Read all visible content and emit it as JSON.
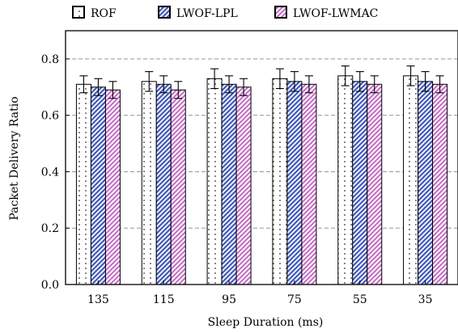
{
  "chart_data": {
    "type": "bar",
    "title": "",
    "xlabel": "Sleep Duration (ms)",
    "ylabel": "Packet Delivery Ratio",
    "ylim": [
      0,
      0.9
    ],
    "yticks": [
      0.0,
      0.2,
      0.4,
      0.6,
      0.8
    ],
    "ytick_labels": [
      "0.0",
      "0.2",
      "0.4",
      "0.6",
      "0.8"
    ],
    "categories": [
      "135",
      "115",
      "95",
      "75",
      "55",
      "35"
    ],
    "grid": "horizontal dashed",
    "legend_position": "top",
    "series": [
      {
        "name": "ROF",
        "values": [
          0.71,
          0.72,
          0.73,
          0.73,
          0.74,
          0.74
        ],
        "errors": [
          0.03,
          0.035,
          0.035,
          0.035,
          0.035,
          0.035
        ],
        "pattern": "dots",
        "color": "#333333"
      },
      {
        "name": "LWOF-LPL",
        "values": [
          0.7,
          0.71,
          0.71,
          0.72,
          0.72,
          0.72
        ],
        "errors": [
          0.03,
          0.03,
          0.03,
          0.035,
          0.035,
          0.035
        ],
        "pattern": "diagonal",
        "color": "#3f58b8"
      },
      {
        "name": "LWOF-LWMAC",
        "values": [
          0.69,
          0.69,
          0.7,
          0.71,
          0.71,
          0.71
        ],
        "errors": [
          0.03,
          0.03,
          0.03,
          0.03,
          0.03,
          0.03
        ],
        "pattern": "diagonal",
        "color": "#c46ac4"
      }
    ]
  }
}
